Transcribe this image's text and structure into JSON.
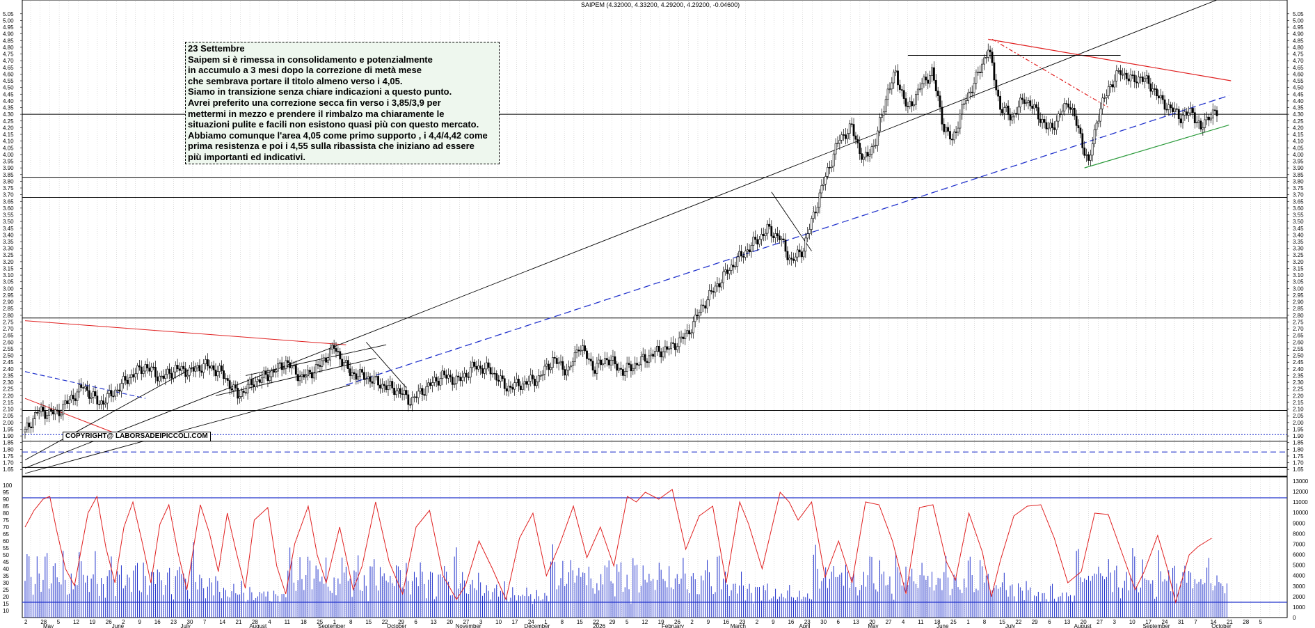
{
  "header": {
    "title": "SAIPEM (4.32000, 4.33200, 4.29200, 4.29200, -0.04600)"
  },
  "annotation": {
    "lines": [
      "23 Settembre",
      "Saipem si è rimessa in consolidamento e potenzialmente",
      "in accumulo a 3 mesi dopo la correzione di metà mese",
      "che sembrava portare il titolo almeno verso i 4,05.",
      "Siamo in transizione senza chiare indicazioni a questo punto.",
      "Avrei preferito una correzione secca fin verso i 3,85/3,9 per",
      "mettermi in mezzo e prendere il rimbalzo ma chiaramente le",
      "situazioni pulite e facili non esistono quasi più con questo mercato.",
      "Abbiamo comunque l'area 4,05 come primo supporto , i 4,4/4,42 come",
      "prima resistenza e poi i 4,55 sulla ribassista che iniziano ad essere",
      "più importanti ed indicativi."
    ]
  },
  "copyright": "COPYRIGHT@ LABORSADEIPICCOLI.COM",
  "chart_data": [
    {
      "type": "candlestick",
      "title": "SAIPEM (4.32000, 4.33200, 4.29200, 4.29200, -0.04600)",
      "ylim": [
        1.62,
        5.08
      ],
      "y_ticks": [
        "5.05",
        "5.00",
        "4.95",
        "4.90",
        "4.85",
        "4.80",
        "4.75",
        "4.70",
        "4.65",
        "4.60",
        "4.55",
        "4.50",
        "4.45",
        "4.40",
        "4.35",
        "4.30",
        "4.25",
        "4.20",
        "4.15",
        "4.10",
        "4.05",
        "4.00",
        "3.95",
        "3.90",
        "3.85",
        "3.80",
        "3.75",
        "3.70",
        "3.65",
        "3.60",
        "3.55",
        "3.50",
        "3.45",
        "3.40",
        "3.35",
        "3.30",
        "3.25",
        "3.20",
        "3.15",
        "3.10",
        "3.05",
        "3.00",
        "2.95",
        "2.90",
        "2.85",
        "2.80",
        "2.75",
        "2.70",
        "2.65",
        "2.60",
        "2.55",
        "2.50",
        "2.45",
        "2.40",
        "2.35",
        "2.30",
        "2.25",
        "2.20",
        "2.15",
        "2.10",
        "2.05",
        "2.00",
        "1.95",
        "1.90",
        "1.85",
        "1.80",
        "1.75",
        "1.70",
        "1.65"
      ],
      "price_path": [
        [
          0,
          1.93
        ],
        [
          6,
          2.08
        ],
        [
          16,
          2.07
        ],
        [
          23,
          2.18
        ],
        [
          29,
          2.27
        ],
        [
          37,
          2.14
        ],
        [
          44,
          2.22
        ],
        [
          52,
          2.34
        ],
        [
          60,
          2.42
        ],
        [
          68,
          2.33
        ],
        [
          75,
          2.4
        ],
        [
          82,
          2.38
        ],
        [
          90,
          2.43
        ],
        [
          98,
          2.37
        ],
        [
          106,
          2.2
        ],
        [
          114,
          2.3
        ],
        [
          122,
          2.36
        ],
        [
          130,
          2.45
        ],
        [
          138,
          2.33
        ],
        [
          146,
          2.41
        ],
        [
          154,
          2.56
        ],
        [
          162,
          2.37
        ],
        [
          170,
          2.34
        ],
        [
          178,
          2.28
        ],
        [
          186,
          2.24
        ],
        [
          192,
          2.16
        ],
        [
          200,
          2.26
        ],
        [
          208,
          2.35
        ],
        [
          216,
          2.31
        ],
        [
          224,
          2.42
        ],
        [
          232,
          2.39
        ],
        [
          240,
          2.26
        ],
        [
          248,
          2.29
        ],
        [
          256,
          2.33
        ],
        [
          263,
          2.47
        ],
        [
          271,
          2.38
        ],
        [
          276,
          2.58
        ],
        [
          284,
          2.4
        ],
        [
          290,
          2.48
        ],
        [
          298,
          2.38
        ],
        [
          306,
          2.45
        ],
        [
          314,
          2.52
        ],
        [
          322,
          2.56
        ],
        [
          330,
          2.66
        ],
        [
          338,
          2.88
        ],
        [
          346,
          3.05
        ],
        [
          354,
          3.2
        ],
        [
          362,
          3.32
        ],
        [
          370,
          3.44
        ],
        [
          376,
          3.38
        ],
        [
          382,
          3.2
        ],
        [
          388,
          3.3
        ],
        [
          394,
          3.6
        ],
        [
          400,
          3.88
        ],
        [
          406,
          4.12
        ],
        [
          412,
          4.2
        ],
        [
          418,
          3.95
        ],
        [
          424,
          4.1
        ],
        [
          430,
          4.48
        ],
        [
          434,
          4.6
        ],
        [
          440,
          4.33
        ],
        [
          446,
          4.5
        ],
        [
          452,
          4.62
        ],
        [
          458,
          4.2
        ],
        [
          462,
          4.1
        ],
        [
          468,
          4.38
        ],
        [
          476,
          4.63
        ],
        [
          480,
          4.8
        ],
        [
          486,
          4.35
        ],
        [
          492,
          4.28
        ],
        [
          498,
          4.42
        ],
        [
          504,
          4.32
        ],
        [
          510,
          4.18
        ],
        [
          514,
          4.25
        ],
        [
          520,
          4.4
        ],
        [
          526,
          4.14
        ],
        [
          530,
          3.92
        ],
        [
          534,
          4.25
        ],
        [
          540,
          4.5
        ],
        [
          546,
          4.62
        ],
        [
          552,
          4.55
        ],
        [
          556,
          4.58
        ],
        [
          562,
          4.5
        ],
        [
          566,
          4.4
        ],
        [
          572,
          4.33
        ],
        [
          576,
          4.28
        ],
        [
          582,
          4.32
        ],
        [
          586,
          4.18
        ],
        [
          590,
          4.3
        ],
        [
          594,
          4.3
        ]
      ],
      "horizontal_levels": [
        4.3,
        3.83,
        3.68,
        2.78,
        2.09,
        1.86,
        1.665
      ],
      "dashed_levels": [
        {
          "value": 1.91,
          "style": "dotted"
        },
        {
          "value": 1.78,
          "style": "dashed"
        }
      ],
      "resistance_start": [
        4.86,
        2.6
      ]
    },
    {
      "type": "indicator",
      "ylim": [
        5,
        100
      ],
      "y_ticks": [
        "100",
        "95",
        "90",
        "85",
        "80",
        "75",
        "70",
        "65",
        "60",
        "55",
        "50",
        "45",
        "40",
        "35",
        "30",
        "25",
        "20",
        "15",
        "10"
      ],
      "right_ticks": [
        "13000",
        "12000",
        "11000",
        "10000",
        "9000",
        "8000",
        "7000",
        "6000",
        "5000",
        "4000",
        "3000",
        "2000",
        "1000",
        "0"
      ],
      "level": 91,
      "volume_level": 1700,
      "oscillator_path": [
        [
          0,
          70
        ],
        [
          4,
          82
        ],
        [
          8,
          90
        ],
        [
          11,
          92
        ],
        [
          14,
          68
        ],
        [
          18,
          40
        ],
        [
          22,
          28
        ],
        [
          28,
          80
        ],
        [
          32,
          92
        ],
        [
          36,
          55
        ],
        [
          40,
          30
        ],
        [
          44,
          70
        ],
        [
          48,
          88
        ],
        [
          52,
          60
        ],
        [
          56,
          30
        ],
        [
          60,
          72
        ],
        [
          64,
          86
        ],
        [
          68,
          52
        ],
        [
          72,
          25
        ],
        [
          78,
          86
        ],
        [
          82,
          66
        ],
        [
          86,
          38
        ],
        [
          90,
          80
        ],
        [
          94,
          52
        ],
        [
          98,
          26
        ],
        [
          102,
          75
        ],
        [
          108,
          84
        ],
        [
          112,
          42
        ],
        [
          116,
          22
        ],
        [
          120,
          58
        ],
        [
          126,
          85
        ],
        [
          130,
          50
        ],
        [
          134,
          30
        ],
        [
          140,
          70
        ],
        [
          146,
          25
        ],
        [
          150,
          42
        ],
        [
          156,
          88
        ],
        [
          162,
          45
        ],
        [
          168,
          22
        ],
        [
          174,
          70
        ],
        [
          180,
          82
        ],
        [
          186,
          35
        ],
        [
          192,
          18
        ],
        [
          196,
          28
        ],
        [
          202,
          60
        ],
        [
          208,
          40
        ],
        [
          214,
          18
        ],
        [
          220,
          62
        ],
        [
          226,
          80
        ],
        [
          232,
          35
        ],
        [
          238,
          58
        ],
        [
          244,
          85
        ],
        [
          250,
          48
        ],
        [
          256,
          70
        ],
        [
          262,
          42
        ],
        [
          268,
          92
        ],
        [
          272,
          88
        ],
        [
          276,
          95
        ],
        [
          282,
          90
        ],
        [
          288,
          97
        ],
        [
          294,
          54
        ],
        [
          300,
          78
        ],
        [
          306,
          85
        ],
        [
          312,
          30
        ],
        [
          318,
          88
        ],
        [
          322,
          72
        ],
        [
          328,
          40
        ],
        [
          336,
          95
        ],
        [
          340,
          88
        ],
        [
          344,
          75
        ],
        [
          350,
          88
        ],
        [
          356,
          34
        ],
        [
          362,
          60
        ],
        [
          368,
          30
        ],
        [
          374,
          88
        ],
        [
          380,
          86
        ],
        [
          386,
          60
        ],
        [
          392,
          22
        ],
        [
          398,
          84
        ],
        [
          404,
          86
        ],
        [
          410,
          45
        ],
        [
          414,
          32
        ],
        [
          420,
          80
        ],
        [
          426,
          52
        ],
        [
          430,
          20
        ],
        [
          434,
          46
        ],
        [
          440,
          78
        ],
        [
          446,
          85
        ],
        [
          452,
          86
        ],
        [
          458,
          62
        ],
        [
          464,
          30
        ],
        [
          470,
          38
        ],
        [
          476,
          80
        ],
        [
          482,
          79
        ],
        [
          488,
          52
        ],
        [
          494,
          25
        ],
        [
          498,
          38
        ],
        [
          504,
          64
        ],
        [
          508,
          42
        ],
        [
          512,
          16
        ],
        [
          518,
          50
        ],
        [
          522,
          56
        ],
        [
          528,
          62
        ]
      ],
      "volume_values": [
        44,
        48,
        40,
        30,
        26,
        26,
        40,
        32,
        28,
        30,
        40,
        46,
        30,
        28,
        34,
        38,
        40,
        30,
        22,
        46,
        36,
        20,
        16,
        30,
        26,
        30,
        22,
        44,
        50,
        40,
        24,
        28,
        22,
        38,
        30,
        44,
        28,
        22,
        28,
        22,
        16,
        44,
        34,
        40,
        30,
        24,
        34,
        28,
        40,
        34,
        24,
        28,
        30,
        30,
        36,
        34,
        40,
        30,
        20,
        36,
        30,
        24,
        26,
        30,
        32,
        34,
        40,
        30,
        26,
        22,
        28,
        30,
        34,
        22,
        16,
        28,
        32,
        46,
        40,
        30,
        26,
        24,
        18,
        40,
        50,
        30,
        28,
        30,
        26,
        24,
        20,
        22,
        26,
        28,
        24,
        30,
        24,
        20,
        22,
        22,
        18,
        16,
        24,
        20,
        22,
        18,
        26,
        18,
        24,
        18,
        16,
        14,
        20,
        18,
        18,
        16,
        14,
        18,
        24,
        22,
        14,
        18,
        16,
        14,
        18,
        16,
        20,
        14,
        16,
        16,
        18
      ]
    }
  ],
  "x_axis": {
    "day_labels": [
      "2",
      "28",
      "5",
      "12",
      "19",
      "26",
      "2",
      "9",
      "16",
      "23",
      "30",
      "7",
      "14",
      "21",
      "28",
      "4",
      "11",
      "18",
      "25",
      "1",
      "8",
      "15",
      "22",
      "29",
      "6",
      "13",
      "20",
      "27",
      "3",
      "10",
      "17",
      "24",
      "1",
      "8",
      "15",
      "22",
      "29",
      "5",
      "12",
      "19",
      "26",
      "2",
      "9",
      "16",
      "23",
      "2",
      "9",
      "16",
      "23",
      "30",
      "6",
      "13",
      "20",
      "27",
      "4",
      "11",
      "18",
      "25",
      "1",
      "8",
      "15",
      "22",
      "29",
      "6",
      "13",
      "20",
      "27",
      "3",
      "10",
      "17",
      "24",
      "31",
      "7",
      "14",
      "21",
      "28",
      "5"
    ],
    "month_labels": [
      "May",
      "June",
      "July",
      "August",
      "September",
      "October",
      "November",
      "December",
      "2026",
      "February",
      "March",
      "April",
      "May",
      "June",
      "July",
      "August",
      "September",
      "October"
    ]
  }
}
